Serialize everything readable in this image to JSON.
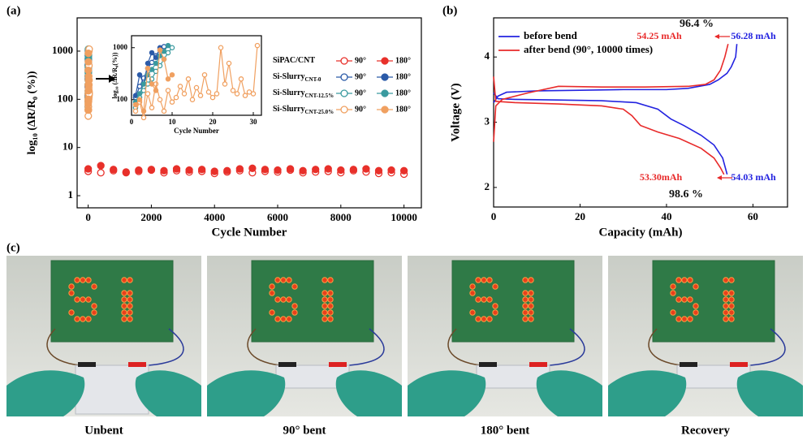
{
  "chart_data": [
    {
      "type": "scatter",
      "label": "(a)",
      "xlabel": "Cycle Number",
      "ylabel": "log₁₀ (ΔR/R₀ (%))",
      "xlim": [
        -350,
        10550
      ],
      "ylim": [
        0.56,
        4900
      ],
      "log_y": true,
      "xticks": [
        0,
        2000,
        4000,
        6000,
        8000,
        10000
      ],
      "yticks": [
        1,
        10,
        100,
        1000
      ],
      "groups": [
        {
          "name": "SiPAC/CNT",
          "subscript": null,
          "color": "#e8302a",
          "series": [
            {
              "name": "90°",
              "filled": false,
              "x": [
                0,
                400,
                800,
                1200,
                1600,
                2000,
                2400,
                2800,
                3200,
                3600,
                4000,
                4400,
                4800,
                5200,
                5600,
                6000,
                6400,
                6800,
                7200,
                7600,
                8000,
                8400,
                8800,
                9200,
                9600,
                10000
              ],
              "values": [
                3.2,
                3.0,
                3.3,
                3.1,
                3.2,
                3.4,
                3.0,
                3.3,
                3.1,
                3.2,
                2.9,
                3.1,
                3.3,
                3.0,
                3.2,
                3.1,
                3.4,
                3.0,
                3.1,
                3.2,
                3.0,
                3.3,
                3.1,
                2.9,
                3.0,
                2.8
              ]
            },
            {
              "name": "180°",
              "filled": true,
              "x": [
                0,
                400,
                800,
                1200,
                1600,
                2000,
                2400,
                2800,
                3200,
                3600,
                4000,
                4400,
                4800,
                5200,
                5600,
                6000,
                6400,
                6800,
                7200,
                7600,
                8000,
                8400,
                8800,
                9200,
                9600,
                10000
              ],
              "values": [
                3.6,
                4.2,
                3.5,
                3.0,
                3.4,
                3.5,
                3.3,
                3.6,
                3.4,
                3.5,
                3.2,
                3.3,
                3.6,
                3.7,
                3.5,
                3.4,
                3.6,
                3.3,
                3.5,
                3.6,
                3.4,
                3.5,
                3.6,
                3.3,
                3.4,
                3.3
              ]
            }
          ]
        },
        {
          "name": "Si-Slurry",
          "subscript": "CNT-0",
          "color": "#2b5aa8",
          "series": [
            {
              "name": "90°",
              "filled": false,
              "x": [
                1,
                2,
                3,
                4,
                5,
                6,
                7,
                8
              ],
              "values": [
                110,
                180,
                260,
                400,
                520,
                700,
                900,
                1050
              ]
            },
            {
              "name": "180°",
              "filled": true,
              "x": [
                1,
                2,
                3,
                4,
                5,
                6,
                7
              ],
              "values": [
                120,
                300,
                200,
                500,
                800,
                650,
                1000
              ]
            }
          ]
        },
        {
          "name": "Si-Slurry",
          "subscript": "CNT-12.5%",
          "color": "#3a9a9f",
          "series": [
            {
              "name": "90°",
              "filled": false,
              "x": [
                1,
                2,
                3,
                4,
                5,
                6,
                7,
                8,
                9,
                10
              ],
              "values": [
                70,
                110,
                150,
                200,
                250,
                350,
                450,
                600,
                800,
                1000
              ]
            },
            {
              "name": "180°",
              "filled": true,
              "x": [
                1,
                2,
                3,
                4,
                5,
                6,
                7,
                8,
                9
              ],
              "values": [
                90,
                130,
                200,
                300,
                380,
                500,
                700,
                850,
                1100
              ]
            }
          ]
        },
        {
          "name": "Si-Slurry",
          "subscript": "CNT-25.0%",
          "color": "#f0a060",
          "series": [
            {
              "name": "90°",
              "filled": false,
              "x": [
                1,
                2,
                3,
                4,
                5,
                6,
                7,
                8,
                9,
                10,
                11,
                12,
                13,
                14,
                15,
                16,
                17,
                18,
                19,
                20,
                21,
                22,
                23,
                24,
                25,
                26,
                27,
                28,
                29,
                30,
                31
              ],
              "values": [
                60,
                90,
                45,
                130,
                70,
                200,
                100,
                60,
                150,
                90,
                110,
                180,
                130,
                250,
                100,
                170,
                120,
                300,
                140,
                110,
                130,
                1000,
                200,
                500,
                150,
                130,
                250,
                120,
                140,
                130,
                1100
              ]
            },
            {
              "name": "180°",
              "filled": true,
              "x": [
                1,
                2,
                3,
                4,
                5,
                6,
                7,
                8,
                9,
                10
              ],
              "values": [
                80,
                100,
                60,
                400,
                200,
                150,
                900,
                600,
                250,
                300
              ]
            }
          ]
        }
      ],
      "inset": {
        "xlabel": "Cycle Number",
        "ylabel": "log₁₀ (ΔR/R₀(%))",
        "xlim": [
          0,
          32
        ],
        "ylim": [
          50,
          1700
        ],
        "log_y": true,
        "xticks": [
          0,
          10,
          20,
          30
        ],
        "yticks": [
          100,
          1000
        ]
      }
    },
    {
      "type": "line",
      "label": "(b)",
      "xlabel": "Capacity (mAh)",
      "ylabel": "Voltage (V)",
      "xlim": [
        0,
        68
      ],
      "ylim": [
        1.7,
        4.6
      ],
      "xticks": [
        0,
        20,
        40,
        60
      ],
      "yticks": [
        2,
        3,
        4
      ],
      "series": [
        {
          "name": "before bend",
          "color": "#2323e0",
          "x": [
            0,
            1,
            3,
            10,
            20,
            30,
            40,
            45,
            50,
            52,
            54,
            55,
            56,
            56.28,
            null,
            0,
            1,
            5,
            15,
            25,
            33,
            38,
            41,
            44,
            48,
            51,
            53,
            54.03
          ],
          "values": [
            3.3,
            3.4,
            3.46,
            3.48,
            3.49,
            3.5,
            3.5,
            3.52,
            3.58,
            3.65,
            3.75,
            3.85,
            4.0,
            4.2,
            null,
            3.45,
            3.36,
            3.35,
            3.34,
            3.33,
            3.3,
            3.2,
            3.05,
            2.95,
            2.8,
            2.65,
            2.45,
            2.2
          ]
        },
        {
          "name": "after bend (90°, 10000 times)",
          "color": "#e82a2a",
          "x": [
            0,
            0.5,
            2,
            8,
            15,
            25,
            35,
            45,
            49,
            51,
            52.5,
            53.5,
            54.25,
            null,
            0,
            0.5,
            5,
            15,
            25,
            30,
            32,
            34,
            38,
            43,
            48,
            51,
            52.5,
            53.3
          ],
          "values": [
            2.7,
            3.25,
            3.35,
            3.45,
            3.55,
            3.54,
            3.54,
            3.55,
            3.58,
            3.65,
            3.8,
            4.0,
            4.2,
            null,
            3.7,
            3.32,
            3.3,
            3.28,
            3.25,
            3.2,
            3.1,
            2.95,
            2.85,
            2.75,
            2.6,
            2.45,
            2.3,
            2.2
          ]
        }
      ],
      "annotations": [
        {
          "text": "96.4 %",
          "color": "#111111"
        },
        {
          "text": "54.25 mAh",
          "color": "#e82a2a"
        },
        {
          "text": "56.28 mAh",
          "color": "#2323e0"
        },
        {
          "text": "53.30mAh",
          "color": "#e82a2a"
        },
        {
          "text": "54.03 mAh",
          "color": "#2323e0"
        },
        {
          "text": "98.6 %",
          "color": "#111111"
        }
      ]
    }
  ],
  "photos": {
    "label": "(c)",
    "captions": [
      "Unbent",
      "90° bent",
      "180° bent",
      "Recovery"
    ]
  }
}
